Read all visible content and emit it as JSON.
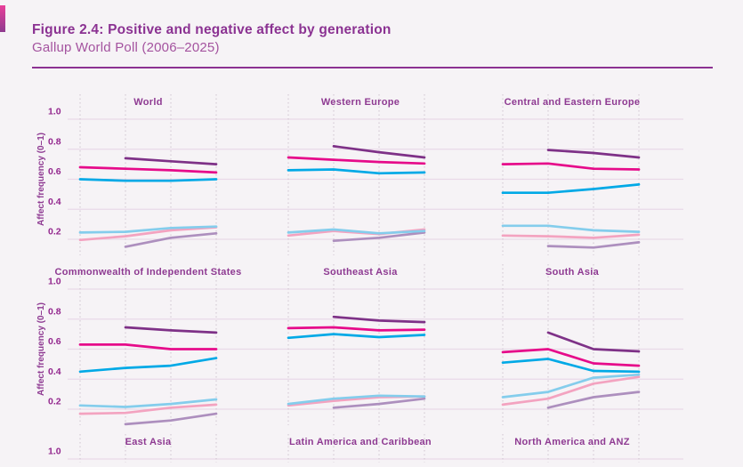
{
  "page": {
    "background_color": "#f6f3f6",
    "corner_bar_colors": [
      "#e9409a",
      "#8e3a8f"
    ]
  },
  "header": {
    "title": "Figure 2.4: Positive and negative affect by generation",
    "subtitle": "Gallup World Poll (2006–2025)",
    "title_color": "#8b3292",
    "subtitle_color": "#a4539f",
    "rule_color": "#8c3292"
  },
  "chart_data": {
    "type": "line",
    "layout": "3x3 small multiples, third row cropped at bottom edge (only panel titles and the 1.0 gridline visible)",
    "title": "Positive and negative affect by generation",
    "ylabel": "Affect frequency (0–1)",
    "ytick_labels": [
      "1.0",
      "0.8",
      "0.6",
      "0.4",
      "0.2"
    ],
    "yticks": [
      1.0,
      0.8,
      0.6,
      0.4,
      0.2
    ],
    "x_points_per_panel": 4,
    "x_tick_labels_visible": false,
    "grid": {
      "horizontal": "solid light pink, continuous across row",
      "vertical": "dotted, 4 per panel"
    },
    "palette": {
      "bright_cyan": "#00a9e6",
      "bright_magenta": "#e60b8a",
      "dark_purple": "#7e3187",
      "light_cyan": "#84cdec",
      "light_pink": "#f3a3c0",
      "light_mauve": "#ad8fbe"
    },
    "text_colors": {
      "panel_title": "#8e3a92",
      "tick_label": "#93278e",
      "axis_label": "#8e3a92"
    },
    "grid_colors": {
      "horizontal": "#e9d9e8",
      "vertical_dotted": "#cfc3cf"
    },
    "panels": [
      {
        "title": "World",
        "row": 0,
        "col": 0,
        "series": [
          {
            "id": "negative-light-mauve",
            "color_key": "light_mauve",
            "values": [
              null,
              0.15,
              0.21,
              0.24
            ]
          },
          {
            "id": "negative-light-pink",
            "color_key": "light_pink",
            "values": [
              0.195,
              0.22,
              0.26,
              0.28
            ]
          },
          {
            "id": "negative-light-cyan",
            "color_key": "light_cyan",
            "values": [
              0.245,
              0.25,
              0.275,
              0.285
            ]
          },
          {
            "id": "positive-dark-purple",
            "color_key": "dark_purple",
            "values": [
              null,
              0.74,
              0.72,
              0.7
            ]
          },
          {
            "id": "positive-magenta",
            "color_key": "bright_magenta",
            "values": [
              0.68,
              0.67,
              0.66,
              0.645
            ]
          },
          {
            "id": "positive-cyan",
            "color_key": "bright_cyan",
            "values": [
              0.6,
              0.59,
              0.59,
              0.6
            ]
          }
        ]
      },
      {
        "title": "Western Europe",
        "row": 0,
        "col": 1,
        "series": [
          {
            "id": "negative-light-mauve",
            "color_key": "light_mauve",
            "values": [
              null,
              0.19,
              0.21,
              0.245
            ]
          },
          {
            "id": "negative-light-pink",
            "color_key": "light_pink",
            "values": [
              0.225,
              0.255,
              0.235,
              0.265
            ]
          },
          {
            "id": "negative-light-cyan",
            "color_key": "light_cyan",
            "values": [
              0.245,
              0.265,
              0.24,
              0.255
            ]
          },
          {
            "id": "positive-dark-purple",
            "color_key": "dark_purple",
            "values": [
              null,
              0.82,
              0.78,
              0.745
            ]
          },
          {
            "id": "positive-magenta",
            "color_key": "bright_magenta",
            "values": [
              0.745,
              0.73,
              0.715,
              0.705
            ]
          },
          {
            "id": "positive-cyan",
            "color_key": "bright_cyan",
            "values": [
              0.66,
              0.665,
              0.64,
              0.645
            ]
          }
        ]
      },
      {
        "title": "Central and Eastern Europe",
        "row": 0,
        "col": 2,
        "series": [
          {
            "id": "negative-light-mauve",
            "color_key": "light_mauve",
            "values": [
              null,
              0.155,
              0.145,
              0.18
            ]
          },
          {
            "id": "negative-light-pink",
            "color_key": "light_pink",
            "values": [
              0.225,
              0.22,
              0.21,
              0.23
            ]
          },
          {
            "id": "negative-light-cyan",
            "color_key": "light_cyan",
            "values": [
              0.29,
              0.29,
              0.26,
              0.25
            ]
          },
          {
            "id": "positive-dark-purple",
            "color_key": "dark_purple",
            "values": [
              null,
              0.795,
              0.775,
              0.745
            ]
          },
          {
            "id": "positive-magenta",
            "color_key": "bright_magenta",
            "values": [
              0.7,
              0.705,
              0.67,
              0.665
            ]
          },
          {
            "id": "positive-cyan",
            "color_key": "bright_cyan",
            "values": [
              0.51,
              0.51,
              0.535,
              0.565
            ]
          }
        ]
      },
      {
        "title": "Commonwealth of Independent States",
        "row": 1,
        "col": 0,
        "series": [
          {
            "id": "negative-light-mauve",
            "color_key": "light_mauve",
            "values": [
              null,
              0.1,
              0.125,
              0.17
            ]
          },
          {
            "id": "negative-light-pink",
            "color_key": "light_pink",
            "values": [
              0.17,
              0.175,
              0.21,
              0.23
            ]
          },
          {
            "id": "negative-light-cyan",
            "color_key": "light_cyan",
            "values": [
              0.225,
              0.215,
              0.235,
              0.265
            ]
          },
          {
            "id": "positive-dark-purple",
            "color_key": "dark_purple",
            "values": [
              null,
              0.745,
              0.725,
              0.71
            ]
          },
          {
            "id": "positive-magenta",
            "color_key": "bright_magenta",
            "values": [
              0.63,
              0.63,
              0.6,
              0.6
            ]
          },
          {
            "id": "positive-cyan",
            "color_key": "bright_cyan",
            "values": [
              0.45,
              0.475,
              0.49,
              0.54
            ]
          }
        ]
      },
      {
        "title": "Southeast Asia",
        "row": 1,
        "col": 1,
        "series": [
          {
            "id": "negative-light-mauve",
            "color_key": "light_mauve",
            "values": [
              null,
              0.21,
              0.235,
              0.27
            ]
          },
          {
            "id": "negative-light-pink",
            "color_key": "light_pink",
            "values": [
              0.225,
              0.255,
              0.28,
              0.285
            ]
          },
          {
            "id": "negative-light-cyan",
            "color_key": "light_cyan",
            "values": [
              0.235,
              0.27,
              0.29,
              0.285
            ]
          },
          {
            "id": "positive-dark-purple",
            "color_key": "dark_purple",
            "values": [
              null,
              0.815,
              0.79,
              0.78
            ]
          },
          {
            "id": "positive-magenta",
            "color_key": "bright_magenta",
            "values": [
              0.74,
              0.745,
              0.725,
              0.73
            ]
          },
          {
            "id": "positive-cyan",
            "color_key": "bright_cyan",
            "values": [
              0.675,
              0.7,
              0.68,
              0.695
            ]
          }
        ]
      },
      {
        "title": "South Asia",
        "row": 1,
        "col": 2,
        "series": [
          {
            "id": "negative-light-mauve",
            "color_key": "light_mauve",
            "values": [
              null,
              0.21,
              0.28,
              0.315
            ]
          },
          {
            "id": "negative-light-pink",
            "color_key": "light_pink",
            "values": [
              0.23,
              0.27,
              0.37,
              0.415
            ]
          },
          {
            "id": "negative-light-cyan",
            "color_key": "light_cyan",
            "values": [
              0.28,
              0.315,
              0.41,
              0.43
            ]
          },
          {
            "id": "positive-dark-purple",
            "color_key": "dark_purple",
            "values": [
              null,
              0.71,
              0.6,
              0.585
            ]
          },
          {
            "id": "positive-magenta",
            "color_key": "bright_magenta",
            "values": [
              0.58,
              0.6,
              0.505,
              0.49
            ]
          },
          {
            "id": "positive-cyan",
            "color_key": "bright_cyan",
            "values": [
              0.51,
              0.535,
              0.455,
              0.45
            ]
          }
        ]
      },
      {
        "title": "East Asia",
        "row": 2,
        "col": 0,
        "series": []
      },
      {
        "title": "Latin America and Caribbean",
        "row": 2,
        "col": 1,
        "series": []
      },
      {
        "title": "North America and ANZ",
        "row": 2,
        "col": 2,
        "series": []
      }
    ]
  }
}
